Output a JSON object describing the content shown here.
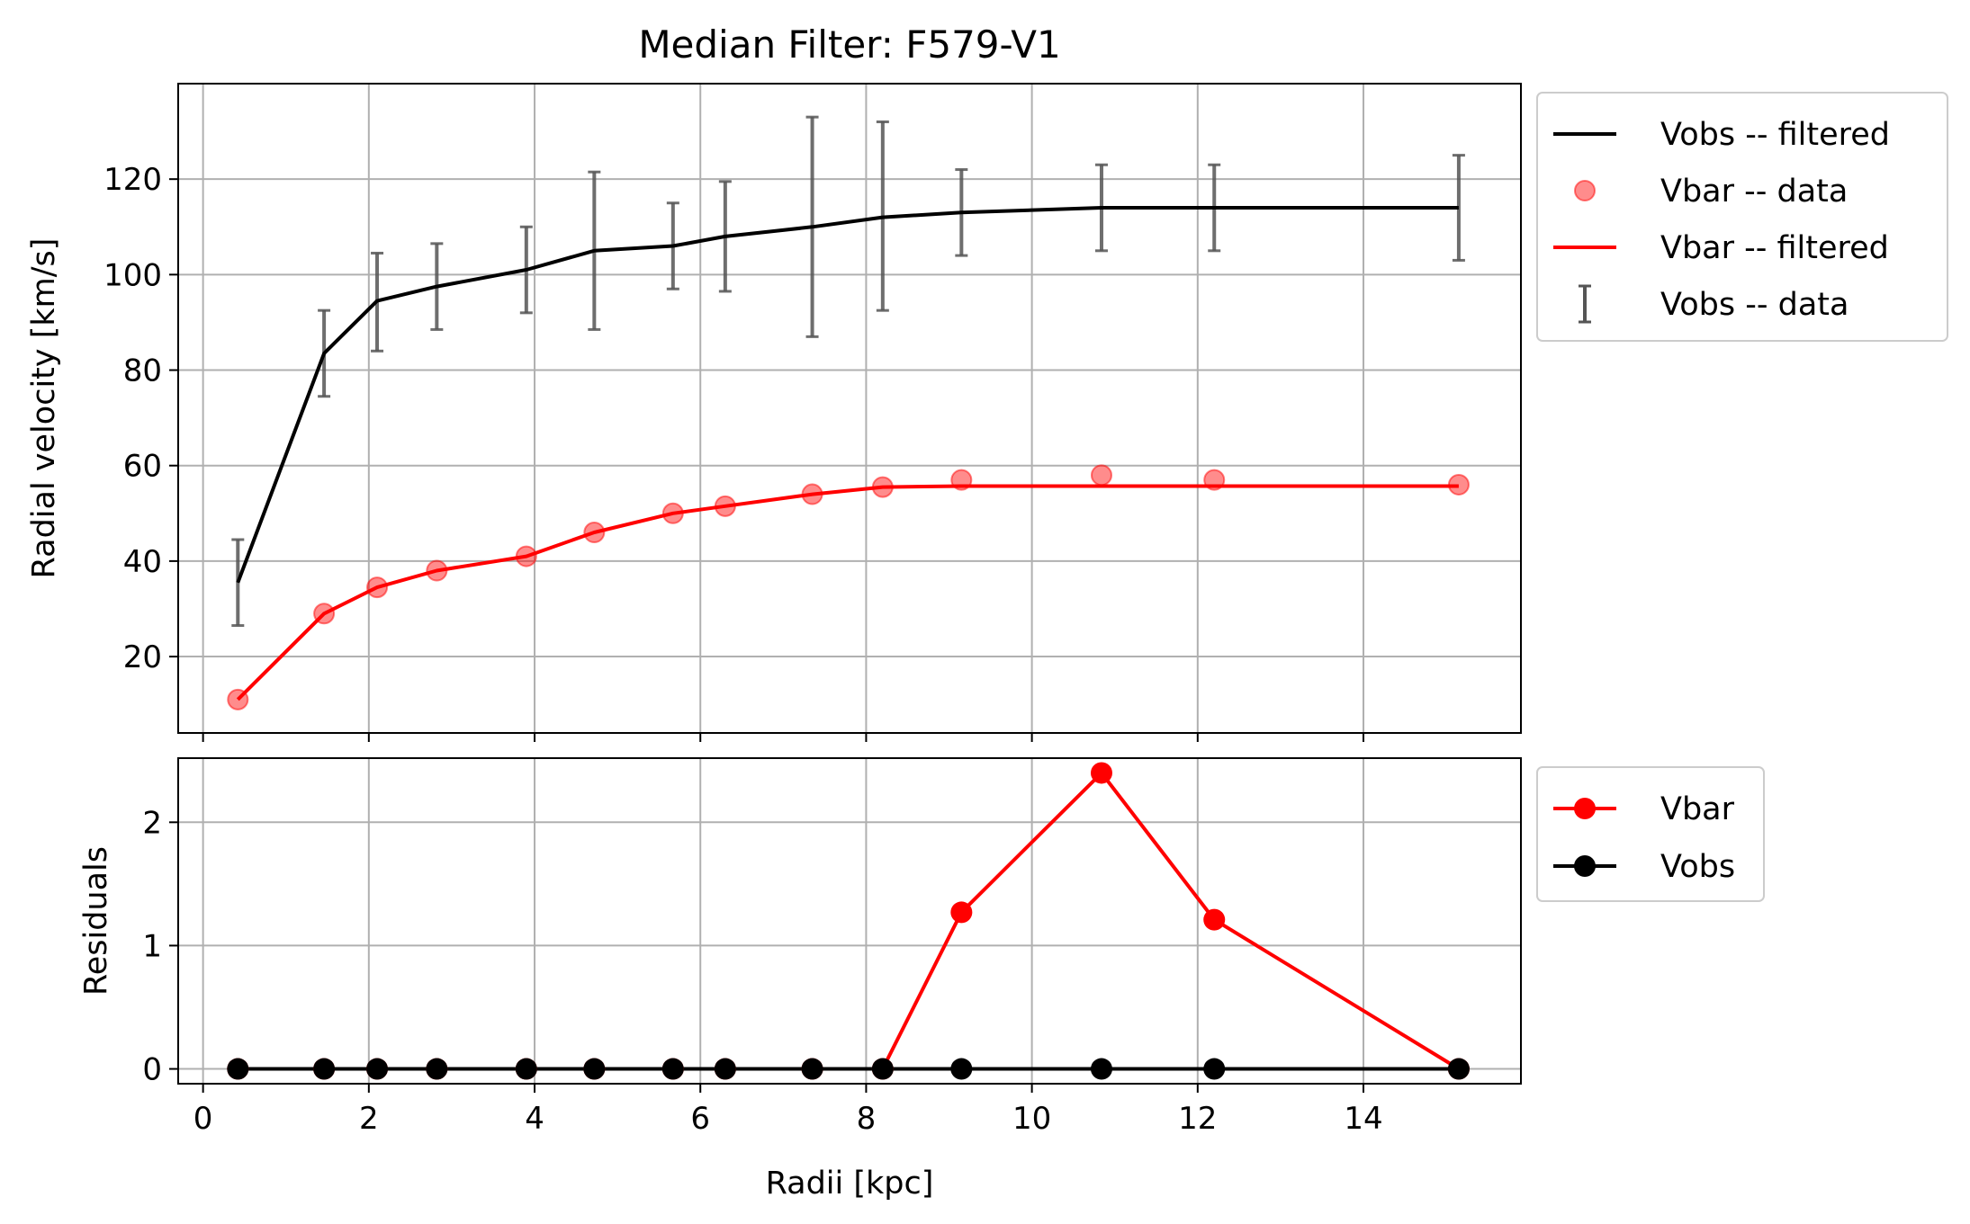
{
  "chart_data": [
    {
      "type": "line",
      "panel": "top",
      "title": "Median Filter: F579-V1",
      "xlabel": "",
      "ylabel": "Radial velocity [km/s]",
      "xlim": [
        -0.3,
        15.9
      ],
      "ylim": [
        4,
        140
      ],
      "xticks": [
        0,
        2,
        4,
        6,
        8,
        10,
        12,
        14
      ],
      "yticks": [
        20,
        40,
        60,
        80,
        100,
        120
      ],
      "grid": true,
      "legend_position": "outside-right-top",
      "x": [
        0.42,
        1.46,
        2.1,
        2.82,
        3.9,
        4.72,
        5.67,
        6.3,
        7.35,
        8.2,
        9.15,
        10.84,
        12.2,
        15.15
      ],
      "series": [
        {
          "name": "Vobs -- filtered",
          "kind": "line",
          "color": "#000000",
          "values": [
            35.5,
            83.5,
            94.5,
            97.5,
            101,
            105,
            106,
            108,
            110,
            112,
            113,
            114,
            114,
            114
          ]
        },
        {
          "name": "Vbar -- data",
          "kind": "scatter",
          "color": "#ff0000",
          "values": [
            11,
            29,
            34.5,
            38,
            41,
            46,
            50,
            51.5,
            54,
            55.5,
            57,
            58,
            57,
            56
          ]
        },
        {
          "name": "Vbar -- filtered",
          "kind": "line",
          "color": "#ff0000",
          "values": [
            11,
            29,
            34.5,
            38,
            41,
            46,
            50,
            51.5,
            54,
            55.5,
            55.7,
            55.7,
            55.7,
            55.7
          ]
        },
        {
          "name": "Vobs -- data",
          "kind": "errorbar",
          "color": "#555555",
          "values": [
            35.5,
            83.5,
            94.5,
            97.5,
            101,
            105,
            106,
            108,
            110,
            112,
            113,
            114,
            114,
            114
          ],
          "lower": [
            26.5,
            74.5,
            84,
            88.5,
            92,
            88.5,
            97,
            96.5,
            87,
            92.5,
            104,
            105,
            105,
            103
          ],
          "upper": [
            44.5,
            92.5,
            104.5,
            106.5,
            110,
            121.5,
            115,
            119.5,
            133,
            132,
            122,
            123,
            123,
            125
          ]
        }
      ]
    },
    {
      "type": "line",
      "panel": "bottom",
      "title": "",
      "xlabel": "Radii [kpc]",
      "ylabel": "Residuals",
      "xlim": [
        -0.3,
        15.9
      ],
      "ylim": [
        -0.12,
        2.52
      ],
      "xticks": [
        0,
        2,
        4,
        6,
        8,
        10,
        12,
        14
      ],
      "yticks": [
        0,
        1,
        2
      ],
      "grid": true,
      "legend_position": "outside-right-top",
      "x": [
        0.42,
        1.46,
        2.1,
        2.82,
        3.9,
        4.72,
        5.67,
        6.3,
        7.35,
        8.2,
        9.15,
        10.84,
        12.2,
        15.15
      ],
      "series": [
        {
          "name": "Vbar",
          "kind": "line-marker",
          "color": "#ff0000",
          "values": [
            0,
            0,
            0,
            0,
            0,
            0,
            0,
            0,
            0,
            0,
            1.27,
            2.4,
            1.21,
            0
          ]
        },
        {
          "name": "Vobs",
          "kind": "line-marker",
          "color": "#000000",
          "values": [
            0,
            0,
            0,
            0,
            0,
            0,
            0,
            0,
            0,
            0,
            0,
            0,
            0,
            0
          ]
        }
      ]
    }
  ]
}
